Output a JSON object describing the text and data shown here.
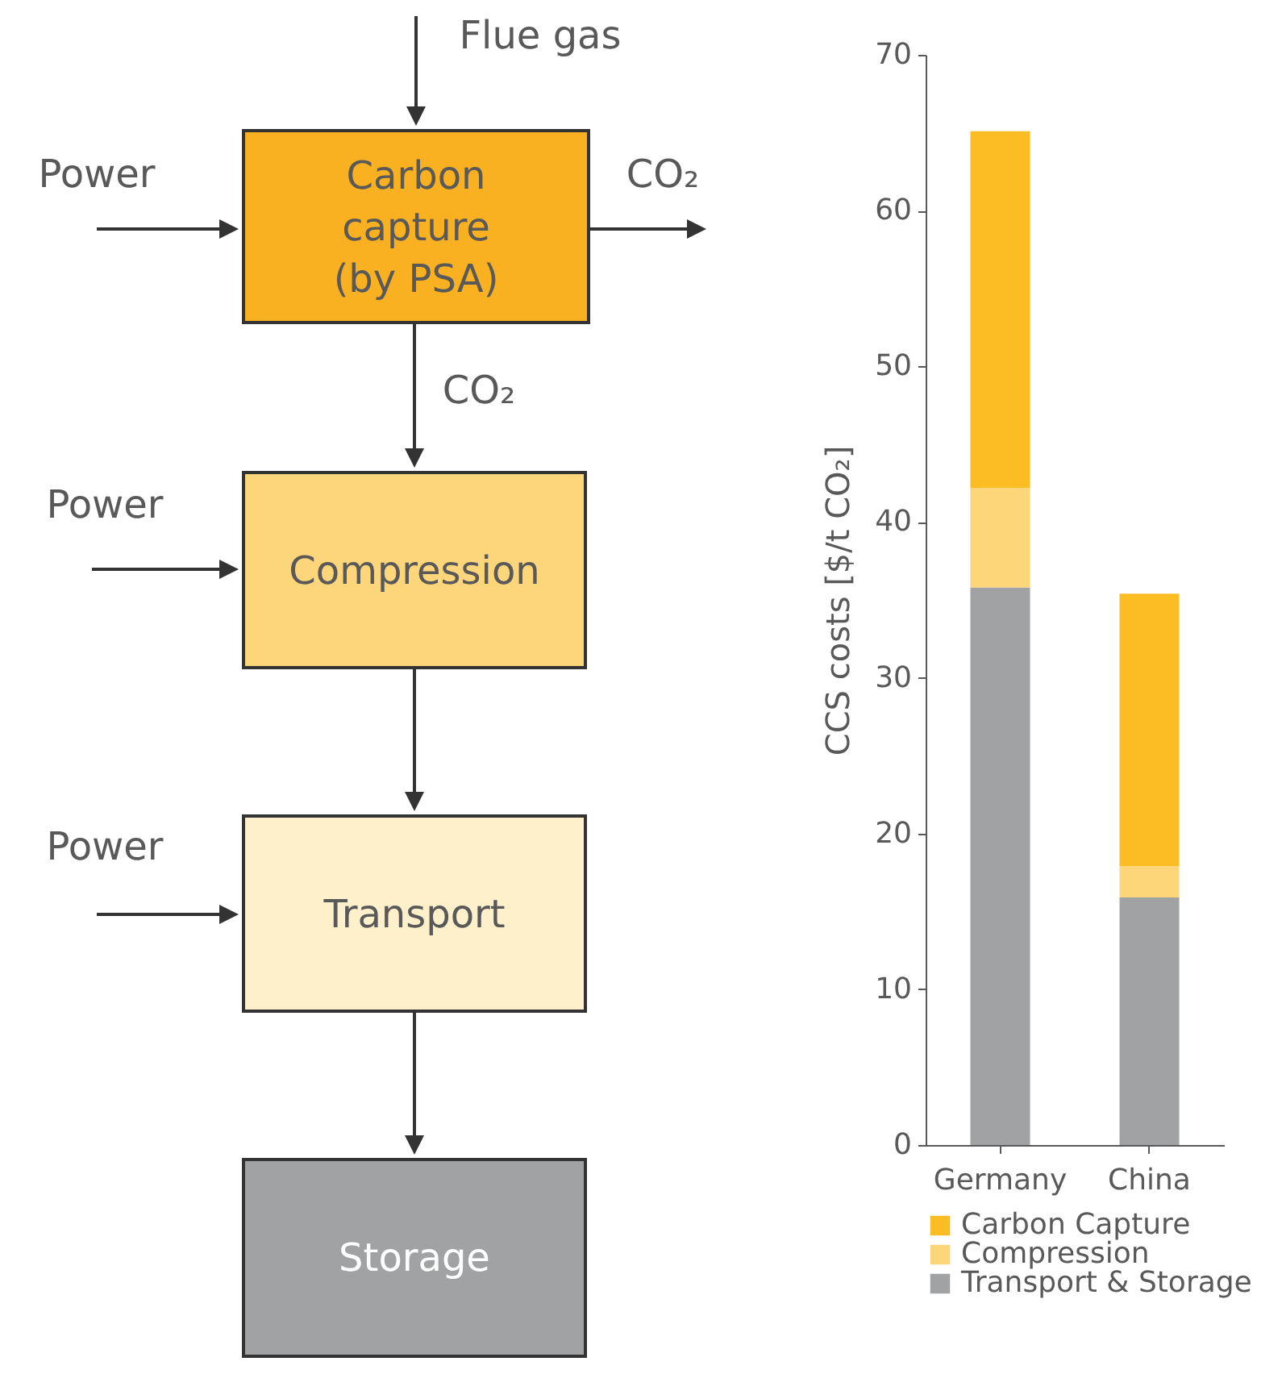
{
  "chart_data": [
    {
      "type": "other",
      "annotations": [
        "Flue gas",
        "Power",
        "Carbon capture (by PSA)",
        "CO₂",
        "CO₂",
        "Power",
        "Compression",
        "Power",
        "Transport",
        "Storage"
      ]
    },
    {
      "type": "bar",
      "stacked": true,
      "ylabel": "CCS costs [$/t CO₂]",
      "categories": [
        "Germany",
        "China"
      ],
      "series": [
        {
          "name": "Transport & Storage",
          "color": "#a0a2a3",
          "values": [
            35.8,
            15.9
          ]
        },
        {
          "name": "Compression",
          "color": "#fdd67a",
          "values": [
            6.4,
            2.0
          ]
        },
        {
          "name": "Carbon Capture",
          "color": "#fbbc24",
          "values": [
            22.9,
            17.5
          ]
        }
      ],
      "ylim": [
        0,
        70
      ],
      "yticks": [
        0,
        10,
        20,
        30,
        40,
        50,
        60,
        70
      ],
      "grid": false,
      "legend": "bottom"
    }
  ]
}
